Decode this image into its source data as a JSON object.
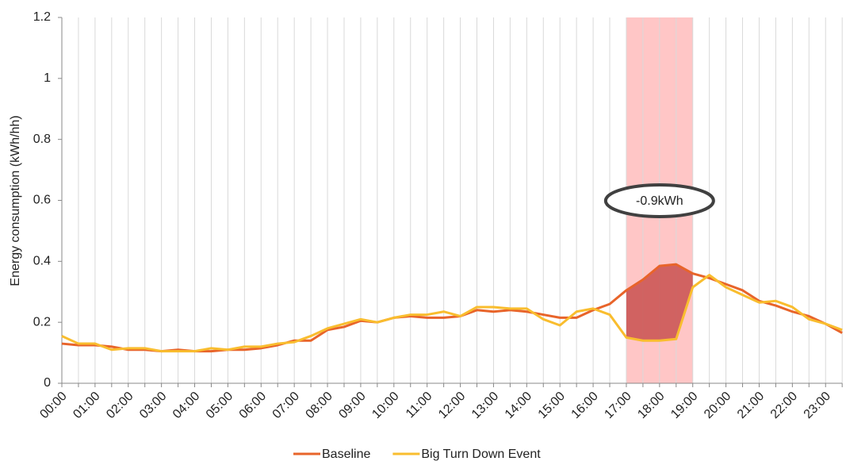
{
  "chart_data": {
    "type": "line",
    "y_label": "Energy consumption (kWh/hh)",
    "categories": [
      "00:00",
      null,
      "01:00",
      null,
      "02:00",
      null,
      "03:00",
      null,
      "04:00",
      null,
      "05:00",
      null,
      "06:00",
      null,
      "07:00",
      null,
      "08:00",
      null,
      "09:00",
      null,
      "10:00",
      null,
      "11:00",
      null,
      "12:00",
      null,
      "13:00",
      null,
      "14:00",
      null,
      "15:00",
      null,
      "16:00",
      null,
      "17:00",
      null,
      "18:00",
      null,
      "19:00",
      null,
      "20:00",
      null,
      "21:00",
      null,
      "22:00",
      null,
      "23:00",
      null
    ],
    "series": [
      {
        "name": "Baseline",
        "color": "#e8642a",
        "values": [
          0.13,
          0.125,
          0.125,
          0.12,
          0.11,
          0.11,
          0.105,
          0.11,
          0.105,
          0.105,
          0.11,
          0.11,
          0.115,
          0.125,
          0.14,
          0.14,
          0.175,
          0.185,
          0.205,
          0.2,
          0.215,
          0.22,
          0.215,
          0.215,
          0.22,
          0.24,
          0.235,
          0.24,
          0.235,
          0.225,
          0.215,
          0.215,
          0.24,
          0.26,
          0.305,
          0.34,
          0.385,
          0.39,
          0.36,
          0.345,
          0.325,
          0.305,
          0.27,
          0.255,
          0.235,
          0.22,
          0.195,
          0.165
        ]
      },
      {
        "name": "Big Turn Down Event",
        "color": "#f9bd2e",
        "values": [
          0.155,
          0.13,
          0.13,
          0.11,
          0.115,
          0.115,
          0.105,
          0.105,
          0.105,
          0.115,
          0.11,
          0.12,
          0.12,
          0.13,
          0.135,
          0.155,
          0.18,
          0.195,
          0.21,
          0.2,
          0.215,
          0.225,
          0.225,
          0.235,
          0.22,
          0.25,
          0.25,
          0.245,
          0.245,
          0.21,
          0.19,
          0.235,
          0.245,
          0.225,
          0.15,
          0.14,
          0.14,
          0.145,
          0.315,
          0.355,
          0.315,
          0.29,
          0.265,
          0.27,
          0.25,
          0.21,
          0.195,
          0.175
        ]
      }
    ],
    "highlight": {
      "from": "17:00",
      "to": "19:00",
      "color": "#ffb3b3",
      "fill": "#c9504f",
      "annotation": "-0.9kWh"
    },
    "ylim": [
      0,
      1.2
    ],
    "yticks": [
      0,
      0.2,
      0.4,
      0.6,
      0.8,
      1,
      1.2
    ],
    "grid": true,
    "legend": "bottom"
  }
}
